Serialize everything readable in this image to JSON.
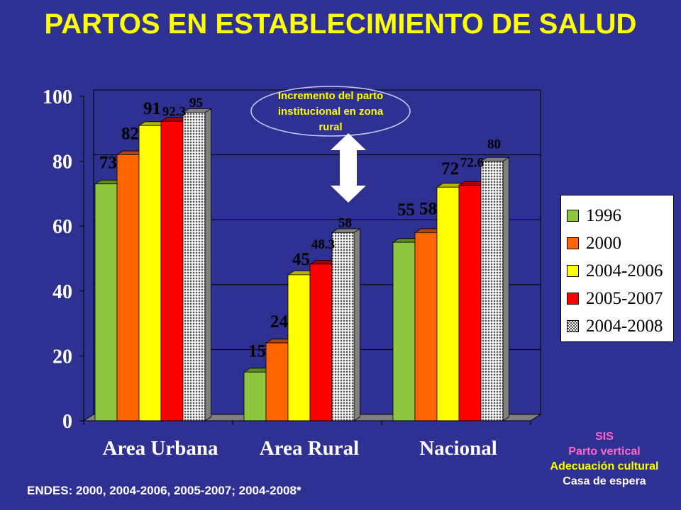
{
  "title": "PARTOS EN ESTABLECIMIENTO DE SALUD",
  "footnote": "ENDES: 2000, 2004-2006, 2005-2007; 2004-2008*",
  "annotation": {
    "text_lines": [
      "Incremento del parto",
      "institucional en zona",
      "rural"
    ]
  },
  "programs": {
    "lines": [
      {
        "text": "SIS",
        "color": "#FF66CC"
      },
      {
        "text": "Parto vertical",
        "color": "#FF66CC"
      },
      {
        "text": "Adecuación cultural",
        "color": "#FFFF00"
      },
      {
        "text": "Casa de espera",
        "color": "#FFFFFF"
      }
    ]
  },
  "colors": {
    "background": "#2E3192",
    "plot_area": "#2E3192",
    "floor": "#808080",
    "title": "#FFFF00"
  },
  "chart_data": {
    "type": "bar",
    "categories": [
      "Area Urbana",
      "Area Rural",
      "Nacional"
    ],
    "series": [
      {
        "name": "1996",
        "values": [
          73,
          15,
          55
        ],
        "labels": [
          "73",
          "15",
          "55"
        ],
        "color": "#8DC63F",
        "side": "#5E8A1E"
      },
      {
        "name": "2000",
        "values": [
          82,
          24,
          58
        ],
        "labels": [
          "82",
          "24",
          "58"
        ],
        "color": "#FF6600",
        "side": "#B34700"
      },
      {
        "name": "2004-2006",
        "values": [
          91,
          45,
          72
        ],
        "labels": [
          "91",
          "45",
          "72"
        ],
        "color": "#FFFF00",
        "side": "#B3B300"
      },
      {
        "name": "2005-2007",
        "values": [
          92.3,
          48.3,
          72.6
        ],
        "labels": [
          "92.3",
          "48.3",
          "72.6"
        ],
        "color": "#FF0000",
        "side": "#A30000"
      },
      {
        "name": "2004-2008",
        "values": [
          95,
          58,
          80
        ],
        "labels": [
          "95",
          "58",
          "80"
        ],
        "color": "#C0C0C0",
        "side": "#808080",
        "pattern": "dotted"
      }
    ],
    "yticks": [
      0,
      20,
      40,
      60,
      80,
      100
    ],
    "ylim": [
      0,
      100
    ],
    "grid": true,
    "legend_position": "right",
    "label_color": "#000000"
  }
}
